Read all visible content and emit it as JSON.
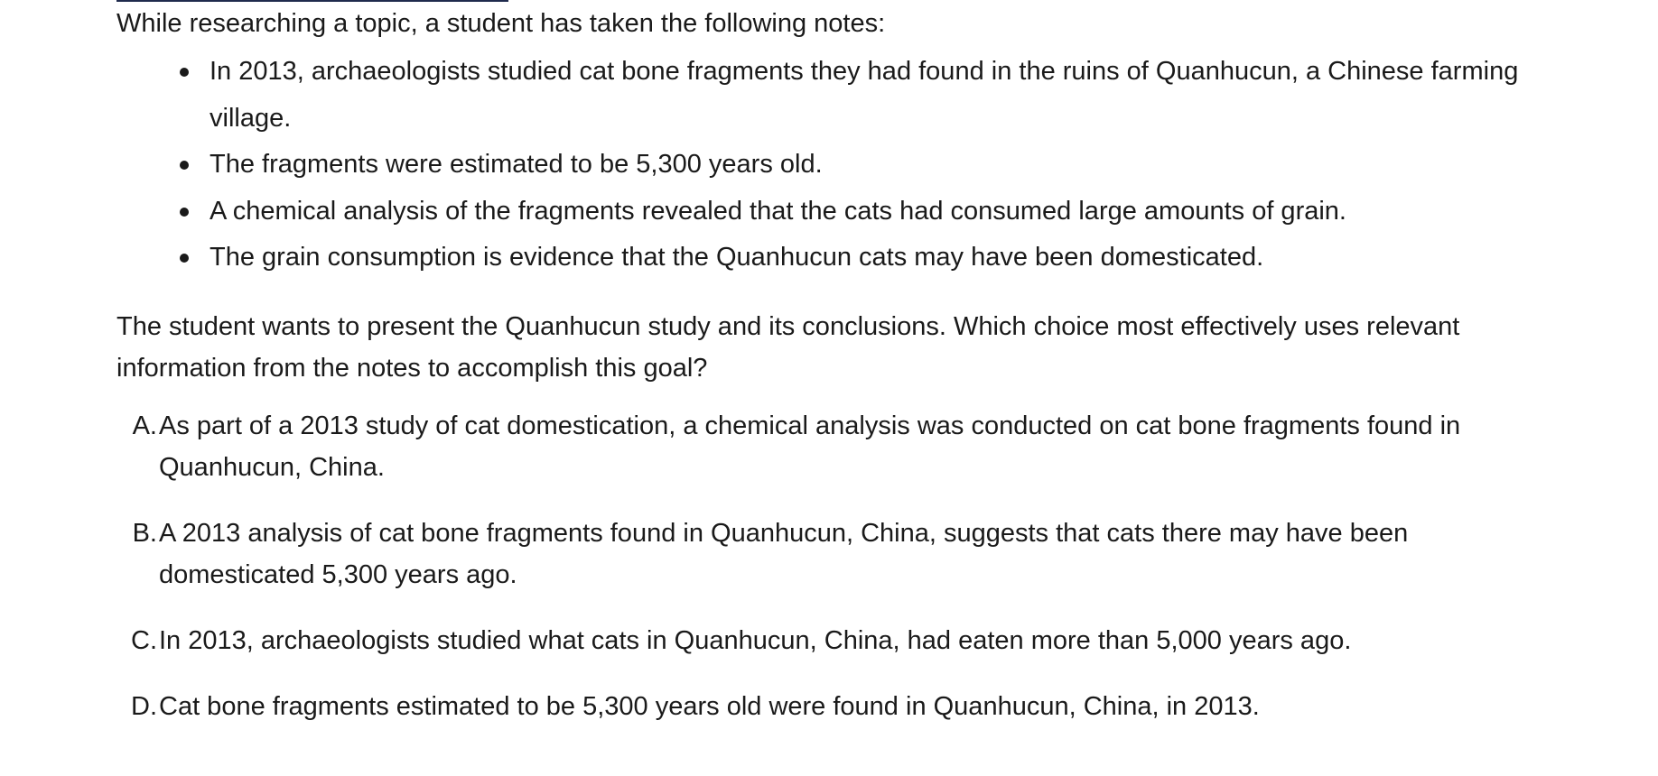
{
  "intro": "While researching a topic, a student has taken the following notes:",
  "notes": [
    "In 2013, archaeologists studied cat bone fragments they had found in the ruins of Quanhucun, a Chinese farming village.",
    "The fragments were estimated to be 5,300 years old.",
    "A chemical analysis of the fragments revealed that the cats had consumed large amounts of grain.",
    "The grain consumption is evidence that the Quanhucun cats may have been domesticated."
  ],
  "question": "The student wants to present the Quanhucun study and its conclusions. Which choice most effectively uses relevant information from the notes to accomplish this goal?",
  "choices": [
    {
      "letter": "A.",
      "text": "As part of a 2013 study of cat domestication, a chemical analysis was conducted on cat bone fragments found in Quanhucun, China."
    },
    {
      "letter": "B.",
      "text": "A 2013 analysis of cat bone fragments found in Quanhucun, China, suggests that cats there may have been domesticated 5,300 years ago."
    },
    {
      "letter": "C.",
      "text": "In 2013, archaeologists studied what cats in Quanhucun, China, had eaten more than 5,000 years ago."
    },
    {
      "letter": "D.",
      "text": "Cat bone fragments estimated to be 5,300 years old were found in Quanhucun, China, in 2013."
    }
  ]
}
